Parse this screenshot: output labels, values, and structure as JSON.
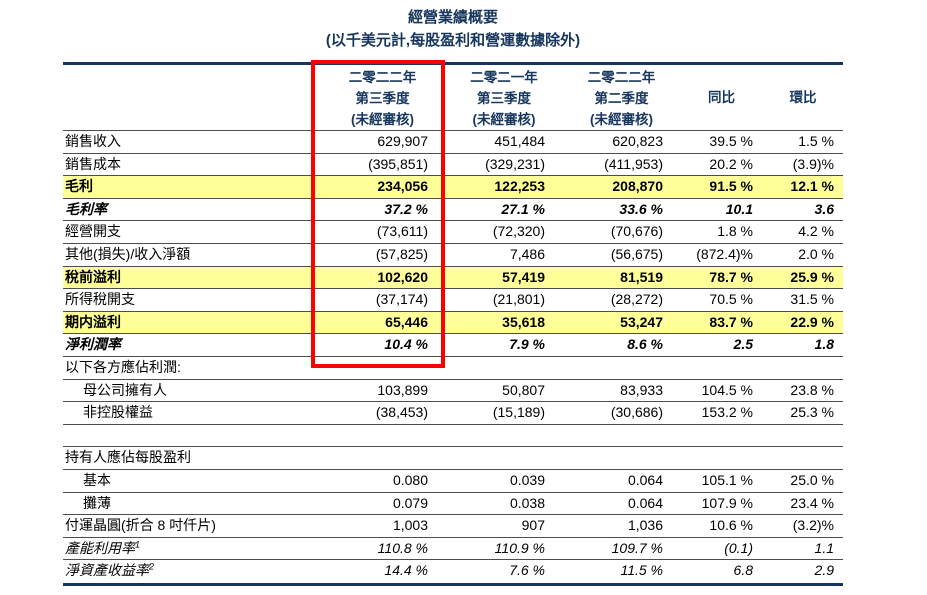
{
  "title": "經營業績概要",
  "subtitle": "(以千美元計,每股盈利和營運數據除外)",
  "columns": [
    [
      "二零二二年",
      "第三季度",
      "(未經審核)"
    ],
    [
      "二零二一年",
      "第三季度",
      "(未經審核)"
    ],
    [
      "二零二二年",
      "第二季度",
      "(未經審核)"
    ],
    [
      "同比"
    ],
    [
      "環比"
    ]
  ],
  "highlight_note": "current-quarter-column-outlined-in-red",
  "colors": {
    "navy": "#17365d",
    "row_highlight_yellow": "#ffff99",
    "red_box": "#fe0000",
    "grid_line": "#4d4d4d"
  },
  "rows": [
    {
      "label": "銷售收入",
      "style": "normal",
      "values": [
        "629,907",
        "451,484",
        "620,823",
        "39.5 %",
        "1.5 %"
      ]
    },
    {
      "label": "銷售成本",
      "style": "normal",
      "values": [
        "(395,851)",
        "(329,231)",
        "(411,953)",
        "20.2 %",
        "(3.9)%"
      ]
    },
    {
      "label": "毛利",
      "style": "highlight",
      "values": [
        "234,056",
        "122,253",
        "208,870",
        "91.5 %",
        "12.1 %"
      ]
    },
    {
      "label": "毛利率",
      "style": "bolditalic",
      "values": [
        "37.2 %",
        "27.1 %",
        "33.6 %",
        "10.1",
        "3.6"
      ]
    },
    {
      "label": "經營開支",
      "style": "normal",
      "values": [
        "(73,611)",
        "(72,320)",
        "(70,676)",
        "1.8 %",
        "4.2 %"
      ]
    },
    {
      "label": "其他(損失)/收入淨額",
      "style": "normal",
      "values": [
        "(57,825)",
        "7,486",
        "(56,675)",
        "(872.4)%",
        "2.0 %"
      ]
    },
    {
      "label": "稅前溢利",
      "style": "highlight",
      "values": [
        "102,620",
        "57,419",
        "81,519",
        "78.7 %",
        "25.9 %"
      ]
    },
    {
      "label": "所得稅開支",
      "style": "normal",
      "values": [
        "(37,174)",
        "(21,801)",
        "(28,272)",
        "70.5 %",
        "31.5 %"
      ]
    },
    {
      "label": "期内溢利",
      "style": "highlight",
      "values": [
        "65,446",
        "35,618",
        "53,247",
        "83.7 %",
        "22.9 %"
      ]
    },
    {
      "label": "淨利潤率",
      "style": "bolditalic",
      "values": [
        "10.4 %",
        "7.9 %",
        "8.6 %",
        "2.5",
        "1.8"
      ]
    },
    {
      "label": "以下各方應佔利潤:",
      "style": "section",
      "values": [
        "",
        "",
        "",
        "",
        ""
      ]
    },
    {
      "label": "母公司擁有人",
      "style": "indent",
      "values": [
        "103,899",
        "50,807",
        "83,933",
        "104.5 %",
        "23.8 %"
      ]
    },
    {
      "label": "非控股權益",
      "style": "indent",
      "values": [
        "(38,453)",
        "(15,189)",
        "(30,686)",
        "153.2 %",
        "25.3 %"
      ]
    },
    {
      "label": "",
      "style": "spacer",
      "values": [
        "",
        "",
        "",
        "",
        ""
      ]
    },
    {
      "label": "持有人應佔每股盈利",
      "style": "section",
      "values": [
        "",
        "",
        "",
        "",
        ""
      ]
    },
    {
      "label": "基本",
      "style": "indent",
      "values": [
        "0.080",
        "0.039",
        "0.064",
        "105.1 %",
        "25.0 %"
      ]
    },
    {
      "label": "攤薄",
      "style": "indent",
      "values": [
        "0.079",
        "0.038",
        "0.064",
        "107.9 %",
        "23.4 %"
      ]
    },
    {
      "label": "付運晶圓(折合 8 吋仟片)",
      "style": "normal",
      "values": [
        "1,003",
        "907",
        "1,036",
        "10.6 %",
        "(3.2)%"
      ]
    },
    {
      "label": "產能利用率",
      "sup": "1",
      "style": "italic",
      "values": [
        "110.8 %",
        "110.9 %",
        "109.7 %",
        "(0.1)",
        "1.1"
      ]
    },
    {
      "label": "淨資產收益率",
      "sup": "2",
      "style": "italic",
      "values": [
        "14.4 %",
        "7.6 %",
        "11.5 %",
        "6.8",
        "2.9"
      ]
    }
  ]
}
